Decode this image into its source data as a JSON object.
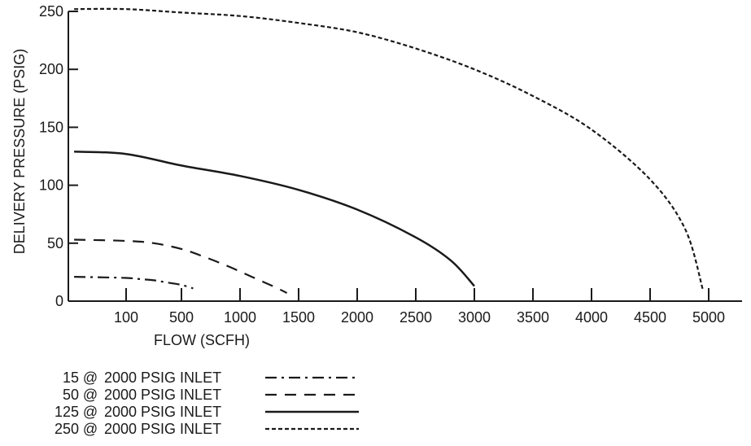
{
  "chart_data": {
    "type": "line",
    "title": "",
    "xlabel": "FLOW (SCFH)",
    "ylabel": "DELIVERY PRESSURE (PSIG)",
    "x_ticks": [
      "100",
      "500",
      "1000",
      "1500",
      "2000",
      "2500",
      "3000",
      "3500",
      "4000",
      "4500",
      "5000"
    ],
    "y_ticks": [
      0,
      50,
      100,
      150,
      200,
      250
    ],
    "ylim": [
      0,
      250
    ],
    "grid": false,
    "legend_position": "bottom-left",
    "series": [
      {
        "name": "15 @ 2000 PSIG INLET",
        "line_style": "dash-dot",
        "x": [
          10,
          100,
          200,
          300,
          400,
          500,
          600
        ],
        "y": [
          21,
          20,
          19,
          18,
          16,
          14,
          11
        ]
      },
      {
        "name": "50 @ 2000 PSIG INLET",
        "line_style": "dashed",
        "x": [
          10,
          100,
          300,
          500,
          700,
          900,
          1100,
          1300,
          1400
        ],
        "y": [
          53,
          52,
          50,
          45,
          38,
          30,
          21,
          12,
          7
        ]
      },
      {
        "name": "125 @ 2000 PSIG INLET",
        "line_style": "solid",
        "x": [
          10,
          100,
          500,
          1000,
          1500,
          2000,
          2500,
          2800,
          3000
        ],
        "y": [
          129,
          127,
          117,
          108,
          96,
          79,
          55,
          35,
          13
        ]
      },
      {
        "name": "250 @ 2000 PSIG INLET",
        "line_style": "dotted",
        "x": [
          10,
          100,
          500,
          1000,
          1500,
          2000,
          2500,
          3000,
          3500,
          4000,
          4500,
          4800,
          4950
        ],
        "y": [
          252,
          252,
          249,
          246,
          240,
          232,
          218,
          200,
          177,
          148,
          105,
          62,
          10
        ]
      }
    ]
  }
}
